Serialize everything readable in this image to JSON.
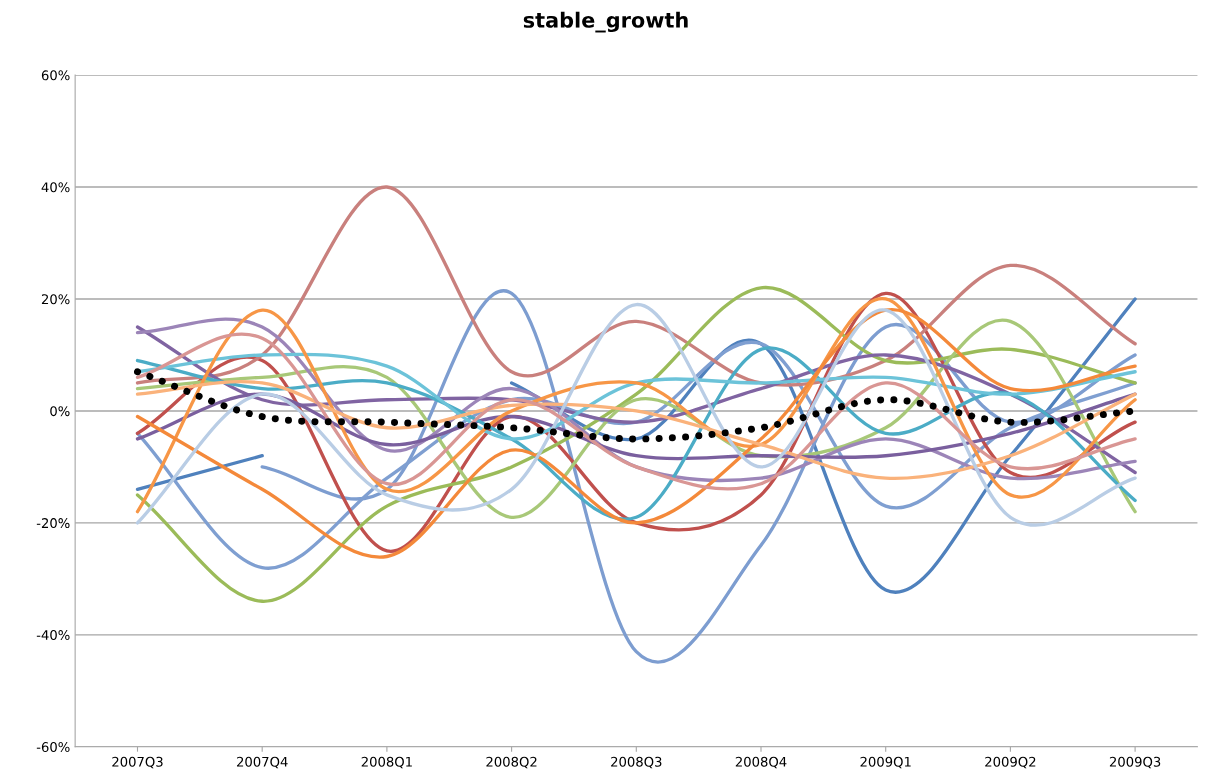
{
  "chart_data": {
    "type": "line",
    "title": "stable_growth",
    "categories": [
      "2007Q3",
      "2007Q4",
      "2008Q1",
      "2008Q2",
      "2008Q3",
      "2008Q4",
      "2009Q1",
      "2009Q2",
      "2009Q3"
    ],
    "ylim": [
      -60,
      60
    ],
    "yticks": [
      {
        "value": -60,
        "label": "-60%"
      },
      {
        "value": -40,
        "label": "-40%"
      },
      {
        "value": -20,
        "label": "-20%"
      },
      {
        "value": 0,
        "label": "0%"
      },
      {
        "value": 20,
        "label": "20%"
      },
      {
        "value": 40,
        "label": "40%"
      },
      {
        "value": 60,
        "label": "60%"
      }
    ],
    "grid": "y",
    "marker": "none",
    "series": [
      {
        "color": "#4f81bd",
        "values": [
          -14,
          -8,
          null,
          5,
          -5,
          12,
          -32,
          -8,
          20
        ]
      },
      {
        "color": "#7d9dd0",
        "values": [
          null,
          -10,
          -14,
          21,
          -43,
          -24,
          15,
          -2,
          10
        ]
      },
      {
        "color": "#7f9fd1",
        "values": [
          -4,
          -28,
          -12,
          2,
          -2,
          12,
          -17,
          -3,
          5
        ]
      },
      {
        "color": "#c0504d",
        "values": [
          -4,
          9,
          -25,
          -1,
          -20,
          -15,
          21,
          -11,
          -2
        ]
      },
      {
        "color": "#c9807d",
        "values": [
          5,
          10,
          40,
          7,
          16,
          5,
          9,
          26,
          12
        ]
      },
      {
        "color": "#9bbb59",
        "values": [
          -15,
          -34,
          -17,
          -10,
          3,
          22,
          9,
          11,
          5
        ]
      },
      {
        "color": "#a8c878",
        "values": [
          4,
          6,
          6,
          -19,
          2,
          -8,
          -3,
          16,
          -18
        ]
      },
      {
        "color": "#8064a2",
        "values": [
          15,
          2,
          2,
          2,
          -2,
          4,
          10,
          3,
          -11
        ]
      },
      {
        "color": "#9c85b8",
        "values": [
          14,
          15,
          -7,
          4,
          -10,
          -12,
          -5,
          -12,
          -9
        ]
      },
      {
        "color": "#7a5f9e",
        "values": [
          -5,
          3,
          -6,
          -1,
          -8,
          -8,
          -8,
          -4,
          3
        ]
      },
      {
        "color": "#4bacc6",
        "values": [
          9,
          4,
          5,
          -5,
          -19,
          11,
          -4,
          3,
          -16
        ]
      },
      {
        "color": "#6cc3d9",
        "values": [
          7,
          10,
          8,
          -5,
          5,
          5,
          6,
          3,
          7
        ]
      },
      {
        "color": "#f79646",
        "values": [
          -18,
          18,
          -14,
          0,
          5,
          -6,
          20,
          -15,
          2
        ]
      },
      {
        "color": "#f4893a",
        "values": [
          -1,
          -14,
          -26,
          -7,
          -20,
          -5,
          18,
          4,
          8
        ]
      },
      {
        "color": "#fab27b",
        "values": [
          3,
          5,
          -3,
          1,
          0,
          -6,
          -12,
          -8,
          3
        ]
      },
      {
        "color": "#b9cde5",
        "values": [
          -20,
          3,
          -15,
          -14,
          19,
          -10,
          18,
          -19,
          -12
        ]
      },
      {
        "color": "#d99694",
        "values": [
          6,
          13,
          -13,
          2,
          -10,
          -13,
          5,
          -10,
          -5
        ]
      },
      {
        "color": "#000000",
        "line_style": "dotted",
        "values": [
          7,
          -1,
          -2,
          -3,
          -5,
          -3,
          2,
          -2,
          0
        ]
      }
    ]
  }
}
